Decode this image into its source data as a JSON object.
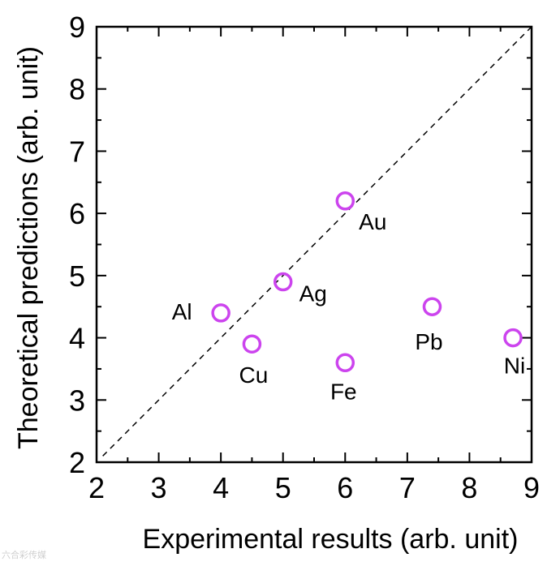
{
  "chart_data": {
    "type": "scatter",
    "title": "",
    "xlabel": "Experimental results (arb. unit)",
    "ylabel": "Theoretical predictions (arb. unit)",
    "xlim": [
      2,
      9
    ],
    "ylim": [
      2,
      9
    ],
    "xticks": [
      "2",
      "3",
      "4",
      "5",
      "6",
      "7",
      "8",
      "9"
    ],
    "yticks": [
      "2",
      "3",
      "4",
      "5",
      "6",
      "7",
      "8",
      "9"
    ],
    "reference_line": "y = x (dashed)",
    "marker_color": "#cc44ee",
    "points": [
      {
        "label": "Au",
        "x": 6.0,
        "y": 6.2
      },
      {
        "label": "Ag",
        "x": 5.0,
        "y": 4.9
      },
      {
        "label": "Al",
        "x": 4.0,
        "y": 4.4
      },
      {
        "label": "Cu",
        "x": 4.5,
        "y": 3.9
      },
      {
        "label": "Fe",
        "x": 6.0,
        "y": 3.6
      },
      {
        "label": "Pb",
        "x": 7.4,
        "y": 4.5
      },
      {
        "label": "Ni",
        "x": 8.7,
        "y": 4.0
      }
    ]
  },
  "watermark": "六合彩传媒"
}
